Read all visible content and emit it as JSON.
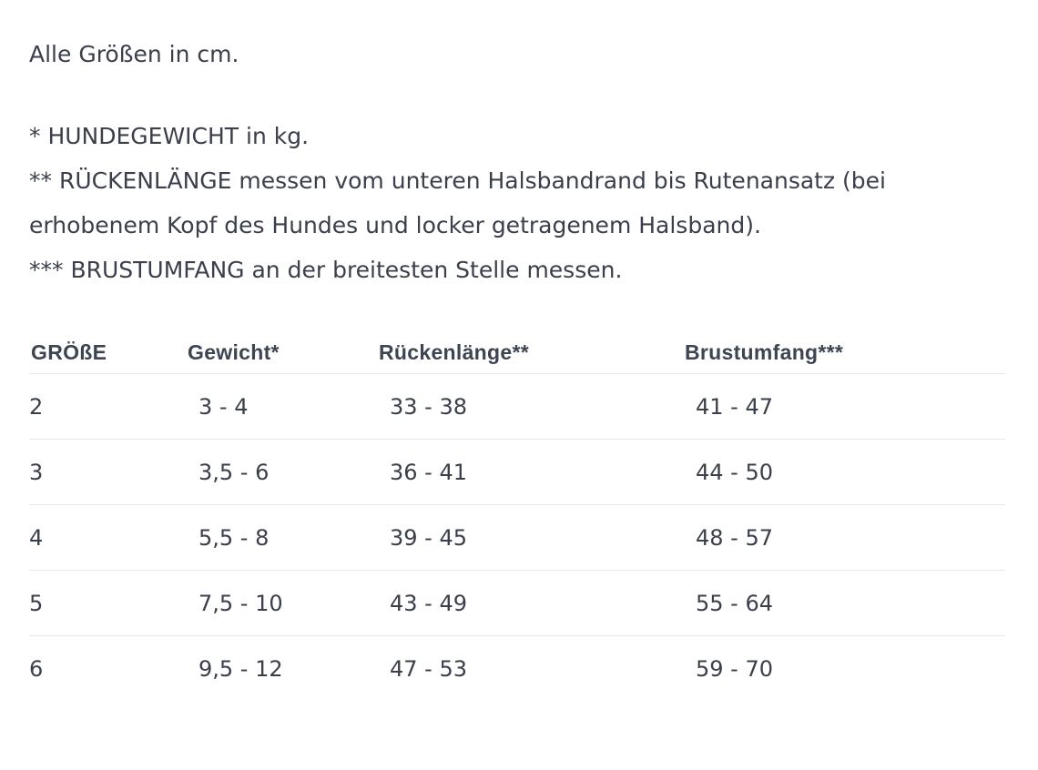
{
  "intro": "Alle Größen in cm.",
  "notes": [
    "* HUNDEGEWICHT in kg.",
    "** RÜCKENLÄNGE messen vom unteren Halsbandrand bis Rutenansatz (bei erhobenem Kopf des Hundes und locker getragenem Halsband).",
    "*** BRUSTUMFANG an der breitesten Stelle messen."
  ],
  "table": {
    "headers": [
      "GRÖßE",
      "Gewicht*",
      "Rückenlänge**",
      "Brustumfang***"
    ],
    "rows": [
      [
        "2",
        "3 - 4",
        "33 - 38",
        "41 - 47"
      ],
      [
        "3",
        "3,5 - 6",
        "36 - 41",
        "44 - 50"
      ],
      [
        "4",
        "5,5 - 8",
        "39 - 45",
        "48 - 57"
      ],
      [
        "5",
        "7,5 - 10",
        "43 - 49",
        "55 - 64"
      ],
      [
        "6",
        "9,5 - 12",
        "47 - 53",
        "59 - 70"
      ]
    ]
  }
}
